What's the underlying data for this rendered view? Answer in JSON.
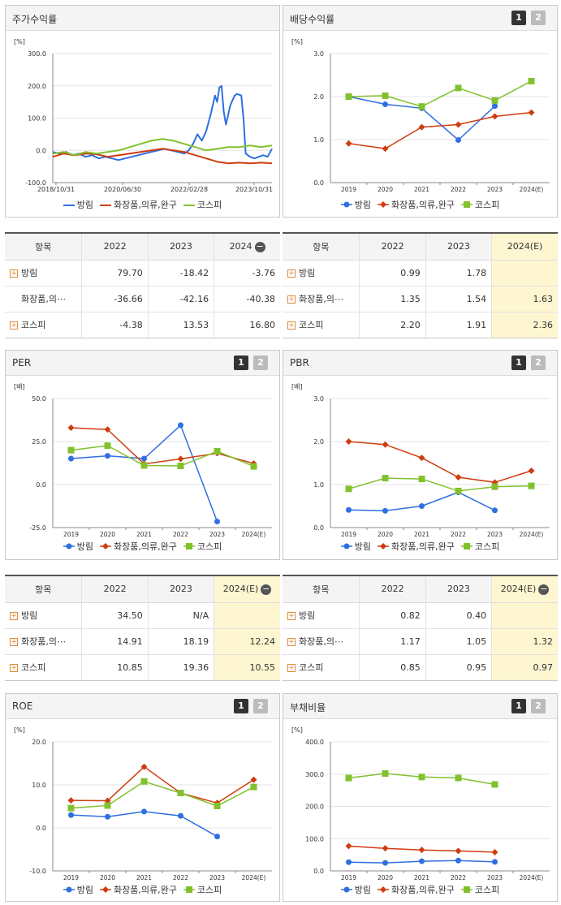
{
  "colors": {
    "bangrim": "#2f6fe0",
    "industry": "#d03c10",
    "kospi": "#82c12e"
  },
  "legend": [
    "방림",
    "화장품,의류,완구",
    "코스피"
  ],
  "legend_short": [
    "방림",
    "화장품,의⋯",
    "코스피"
  ],
  "buttons": {
    "b1": "1",
    "b2": "2"
  },
  "tables": {
    "returns": {
      "header": [
        "항목",
        "2022",
        "2023",
        "2024"
      ],
      "rows": [
        {
          "label": "방림",
          "values": [
            "79.70",
            "-18.42",
            "-3.76"
          ]
        },
        {
          "label": "화장품,의⋯",
          "values": [
            "-36.66",
            "-42.16",
            "-40.38"
          ]
        },
        {
          "label": "코스피",
          "values": [
            "-4.38",
            "13.53",
            "16.80"
          ]
        }
      ]
    },
    "dividend": {
      "header": [
        "항목",
        "2022",
        "2023",
        "2024(E)"
      ],
      "rows": [
        {
          "label": "방림",
          "values": [
            "0.99",
            "1.78",
            ""
          ]
        },
        {
          "label": "화장품,의⋯",
          "values": [
            "1.35",
            "1.54",
            "1.63"
          ]
        },
        {
          "label": "코스피",
          "values": [
            "2.20",
            "1.91",
            "2.36"
          ]
        }
      ]
    },
    "per": {
      "header": [
        "항목",
        "2022",
        "2023",
        "2024(E)"
      ],
      "rows": [
        {
          "label": "방림",
          "values": [
            "34.50",
            "N/A",
            ""
          ]
        },
        {
          "label": "화장품,의⋯",
          "values": [
            "14.91",
            "18.19",
            "12.24"
          ]
        },
        {
          "label": "코스피",
          "values": [
            "10.85",
            "19.36",
            "10.55"
          ]
        }
      ]
    },
    "pbr": {
      "header": [
        "항목",
        "2022",
        "2023",
        "2024(E)"
      ],
      "rows": [
        {
          "label": "방림",
          "values": [
            "0.82",
            "0.40",
            ""
          ]
        },
        {
          "label": "화장품,의⋯",
          "values": [
            "1.17",
            "1.05",
            "1.32"
          ]
        },
        {
          "label": "코스피",
          "values": [
            "0.85",
            "0.95",
            "0.97"
          ]
        }
      ]
    }
  },
  "chart_data": [
    {
      "id": "returns",
      "title": "주가수익률",
      "type": "line",
      "unit": "[%]",
      "ylim": [
        -100,
        300
      ],
      "yticks": [
        "300.0",
        "200.0",
        "100.0",
        "0.0",
        "-100.0"
      ],
      "xticks": [
        "2018/10/31",
        "2020/06/30",
        "2022/02/28",
        "2023/10/31"
      ],
      "series": [
        {
          "name": "방림",
          "points": [
            [
              0,
              -5
            ],
            [
              0.03,
              -10
            ],
            [
              0.06,
              -5
            ],
            [
              0.09,
              -15
            ],
            [
              0.12,
              -10
            ],
            [
              0.15,
              -20
            ],
            [
              0.18,
              -15
            ],
            [
              0.21,
              -25
            ],
            [
              0.24,
              -20
            ],
            [
              0.27,
              -25
            ],
            [
              0.3,
              -30
            ],
            [
              0.33,
              -25
            ],
            [
              0.36,
              -20
            ],
            [
              0.39,
              -15
            ],
            [
              0.42,
              -10
            ],
            [
              0.45,
              -5
            ],
            [
              0.48,
              0
            ],
            [
              0.51,
              5
            ],
            [
              0.54,
              0
            ],
            [
              0.57,
              -5
            ],
            [
              0.6,
              -10
            ],
            [
              0.62,
              0
            ],
            [
              0.64,
              20
            ],
            [
              0.66,
              50
            ],
            [
              0.68,
              30
            ],
            [
              0.7,
              60
            ],
            [
              0.72,
              110
            ],
            [
              0.74,
              170
            ],
            [
              0.75,
              150
            ],
            [
              0.76,
              195
            ],
            [
              0.77,
              200
            ],
            [
              0.78,
              120
            ],
            [
              0.79,
              80
            ],
            [
              0.81,
              140
            ],
            [
              0.83,
              170
            ],
            [
              0.84,
              175
            ],
            [
              0.86,
              170
            ],
            [
              0.87,
              100
            ],
            [
              0.88,
              -10
            ],
            [
              0.9,
              -20
            ],
            [
              0.92,
              -25
            ],
            [
              0.94,
              -20
            ],
            [
              0.96,
              -15
            ],
            [
              0.98,
              -20
            ],
            [
              1.0,
              5
            ]
          ]
        },
        {
          "name": "화장품,의류,완구",
          "points": [
            [
              0,
              -20
            ],
            [
              0.05,
              -10
            ],
            [
              0.1,
              -15
            ],
            [
              0.15,
              -10
            ],
            [
              0.2,
              -12
            ],
            [
              0.25,
              -20
            ],
            [
              0.3,
              -15
            ],
            [
              0.35,
              -10
            ],
            [
              0.4,
              -5
            ],
            [
              0.45,
              0
            ],
            [
              0.5,
              5
            ],
            [
              0.55,
              0
            ],
            [
              0.6,
              -5
            ],
            [
              0.65,
              -15
            ],
            [
              0.7,
              -25
            ],
            [
              0.75,
              -35
            ],
            [
              0.8,
              -40
            ],
            [
              0.85,
              -38
            ],
            [
              0.9,
              -40
            ],
            [
              0.95,
              -38
            ],
            [
              1.0,
              -40
            ]
          ]
        },
        {
          "name": "코스피",
          "points": [
            [
              0,
              -10
            ],
            [
              0.05,
              -5
            ],
            [
              0.1,
              -15
            ],
            [
              0.15,
              -5
            ],
            [
              0.2,
              -10
            ],
            [
              0.25,
              -5
            ],
            [
              0.3,
              0
            ],
            [
              0.35,
              10
            ],
            [
              0.4,
              20
            ],
            [
              0.45,
              30
            ],
            [
              0.5,
              35
            ],
            [
              0.55,
              30
            ],
            [
              0.6,
              20
            ],
            [
              0.65,
              10
            ],
            [
              0.7,
              0
            ],
            [
              0.75,
              5
            ],
            [
              0.8,
              10
            ],
            [
              0.85,
              10
            ],
            [
              0.9,
              15
            ],
            [
              0.95,
              10
            ],
            [
              1.0,
              15
            ]
          ]
        }
      ]
    },
    {
      "id": "dividend",
      "title": "배당수익률",
      "type": "line",
      "unit": "[%]",
      "ylim": [
        0,
        3
      ],
      "yticks": [
        "3.0",
        "2.0",
        "1.0",
        "0.0"
      ],
      "categories": [
        "2019",
        "2020",
        "2021",
        "2022",
        "2023",
        "2024(E)"
      ],
      "series": [
        {
          "name": "방림",
          "values": [
            2.0,
            1.82,
            1.73,
            0.99,
            1.78,
            null
          ]
        },
        {
          "name": "화장품,의류,완구",
          "values": [
            0.91,
            0.79,
            1.29,
            1.35,
            1.54,
            1.63
          ]
        },
        {
          "name": "코스피",
          "values": [
            2.0,
            2.02,
            1.77,
            2.2,
            1.91,
            2.36
          ]
        }
      ]
    },
    {
      "id": "per",
      "title": "PER",
      "type": "line",
      "unit": "[배]",
      "ylim": [
        -25,
        50
      ],
      "yticks": [
        "50.0",
        "25.0",
        "0.0",
        "-25.0"
      ],
      "categories": [
        "2019",
        "2020",
        "2021",
        "2022",
        "2023",
        "2024(E)"
      ],
      "series": [
        {
          "name": "방림",
          "values": [
            15.1,
            16.7,
            15.1,
            34.5,
            -21.5,
            null
          ]
        },
        {
          "name": "화장품,의류,완구",
          "values": [
            33.0,
            32.0,
            12.0,
            14.91,
            18.19,
            12.24
          ]
        },
        {
          "name": "코스피",
          "values": [
            20.0,
            22.6,
            11.1,
            10.85,
            19.36,
            10.55
          ]
        }
      ]
    },
    {
      "id": "pbr",
      "title": "PBR",
      "type": "line",
      "unit": "[배]",
      "ylim": [
        0,
        3
      ],
      "yticks": [
        "3.0",
        "2.0",
        "1.0",
        "0.0"
      ],
      "categories": [
        "2019",
        "2020",
        "2021",
        "2022",
        "2023",
        "2024(E)"
      ],
      "series": [
        {
          "name": "방림",
          "values": [
            0.41,
            0.39,
            0.5,
            0.82,
            0.4,
            null
          ]
        },
        {
          "name": "화장품,의류,완구",
          "values": [
            2.0,
            1.93,
            1.62,
            1.17,
            1.05,
            1.32
          ]
        },
        {
          "name": "코스피",
          "values": [
            0.9,
            1.15,
            1.13,
            0.85,
            0.95,
            0.97
          ]
        }
      ]
    },
    {
      "id": "roe",
      "title": "ROE",
      "type": "line",
      "unit": "[%]",
      "ylim": [
        -10,
        20
      ],
      "yticks": [
        "20.0",
        "10.0",
        "0.0",
        "-10.0"
      ],
      "categories": [
        "2019",
        "2020",
        "2021",
        "2022",
        "2023",
        "2024(E)"
      ],
      "series": [
        {
          "name": "방림",
          "values": [
            3.0,
            2.6,
            3.8,
            2.8,
            -2.0,
            null
          ]
        },
        {
          "name": "화장품,의류,완구",
          "values": [
            6.4,
            6.3,
            14.2,
            8.1,
            5.8,
            11.2
          ]
        },
        {
          "name": "코스피",
          "values": [
            4.6,
            5.2,
            10.8,
            8.1,
            5.1,
            9.5
          ]
        }
      ]
    },
    {
      "id": "debt",
      "title": "부채비율",
      "type": "line",
      "unit": "[%]",
      "ylim": [
        0,
        400
      ],
      "yticks": [
        "400.0",
        "300.0",
        "200.0",
        "100.0",
        "0.0"
      ],
      "categories": [
        "2019",
        "2020",
        "2021",
        "2022",
        "2023",
        "2024(E)"
      ],
      "series": [
        {
          "name": "방림",
          "values": [
            27,
            25,
            30,
            32,
            28,
            null
          ]
        },
        {
          "name": "화장품,의류,완구",
          "values": [
            77,
            70,
            65,
            62,
            58,
            null
          ]
        },
        {
          "name": "코스피",
          "values": [
            288,
            302,
            291,
            288,
            268,
            null
          ]
        }
      ]
    }
  ]
}
